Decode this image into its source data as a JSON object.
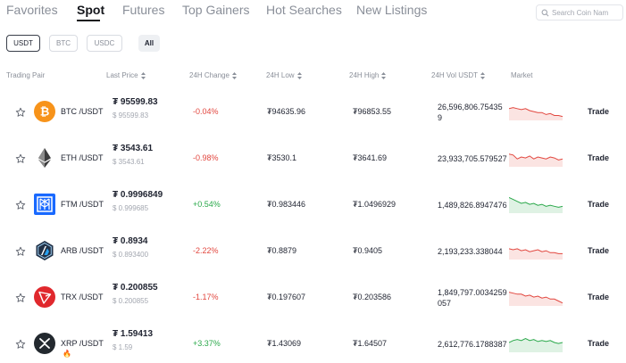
{
  "tabs": [
    {
      "label": "Favorites"
    },
    {
      "label": "Spot"
    },
    {
      "label": "Futures"
    },
    {
      "label": "Top Gainers"
    },
    {
      "label": "Hot Searches"
    },
    {
      "label": "New Listings"
    }
  ],
  "search": {
    "placeholder": "Search Coin Nam"
  },
  "quote_filters": [
    {
      "label": "USDT",
      "selected": true
    },
    {
      "label": "BTC"
    },
    {
      "label": "USDC"
    },
    {
      "label": "All"
    }
  ],
  "columns": {
    "pair": "Trading Pair",
    "last_price": "Last Price",
    "change": "24H Change",
    "low": "24H Low",
    "high": "24H High",
    "volume": "24H Vol USDT",
    "market": "Market"
  },
  "colors": {
    "positive": "#2aa84a",
    "negative": "#e2473f"
  },
  "rows": [
    {
      "icon": "btc-icon",
      "icon_color": "#f7931a",
      "pair": "BTC /USDT",
      "price": "₮ 95599.83",
      "sub_price": "$ 95599.83",
      "change": "-0.04%",
      "low": "₮94635.96",
      "high": "₮96853.55",
      "volume_line1": "26,596,806.75435",
      "volume_line2": "9",
      "trend": "down",
      "sparkline": [
        8,
        7,
        8,
        9,
        8,
        10,
        11,
        12,
        12,
        14,
        13,
        15,
        15,
        16
      ],
      "trade": "Trade"
    },
    {
      "icon": "eth-icon",
      "icon_color": "#3c3c3d",
      "pair": "ETH /USDT",
      "price": "₮ 3543.61",
      "sub_price": "$ 3543.61",
      "change": "-0.98%",
      "low": "₮3530.1",
      "high": "₮3641.69",
      "volume_line1": "23,933,705.579527",
      "volume_line2": "",
      "trend": "down",
      "sparkline": [
        7,
        8,
        12,
        10,
        11,
        9,
        12,
        10,
        11,
        12,
        10,
        11,
        13,
        12
      ],
      "trade": "Trade"
    },
    {
      "icon": "ftm-icon",
      "icon_color": "#1969ff",
      "pair": "FTM /USDT",
      "price": "₮ 0.9996849",
      "sub_price": "$ 0.999685",
      "change": "+0.54%",
      "low": "₮0.983446",
      "high": "₮1.0496929",
      "volume_line1": "1,489,826.8947476",
      "volume_line2": "",
      "trend": "up",
      "sparkline": [
        4,
        6,
        8,
        10,
        9,
        11,
        10,
        12,
        11,
        13,
        12,
        13,
        14,
        13
      ],
      "trade": "Trade"
    },
    {
      "icon": "arb-icon",
      "icon_color": "#213147",
      "pair": "ARB /USDT",
      "price": "₮ 0.8934",
      "sub_price": "$ 0.893400",
      "change": "-2.22%",
      "low": "₮0.8879",
      "high": "₮0.9405",
      "volume_line1": "2,193,233.338044",
      "volume_line2": "",
      "trend": "down",
      "sparkline": [
        9,
        10,
        9,
        11,
        10,
        12,
        11,
        10,
        12,
        11,
        13,
        13,
        14,
        14
      ],
      "trade": "Trade"
    },
    {
      "icon": "trx-icon",
      "icon_color": "#e0282d",
      "pair": "TRX /USDT",
      "price": "₮ 0.200855",
      "sub_price": "$ 0.200855",
      "change": "-1.17%",
      "low": "₮0.197607",
      "high": "₮0.203586",
      "volume_line1": "1,849,797.0034259",
      "volume_line2": "057",
      "trend": "down",
      "sparkline": [
        6,
        7,
        8,
        8,
        10,
        9,
        11,
        10,
        12,
        11,
        13,
        13,
        15,
        17
      ],
      "trade": "Trade"
    },
    {
      "icon": "xrp-icon",
      "icon_color": "#23292f",
      "pair": "XRP /USDT",
      "price": "₮ 1.59413",
      "sub_price": "$ 1.59",
      "change": "+3.37%",
      "low": "₮1.43069",
      "high": "₮1.64507",
      "volume_line1": "2,612,776.1788387",
      "volume_line2": "",
      "trend": "up",
      "sparkline": [
        10,
        8,
        7,
        8,
        6,
        8,
        7,
        9,
        8,
        9,
        8,
        10,
        11,
        10
      ],
      "trade": "Trade",
      "hot": true
    }
  ]
}
